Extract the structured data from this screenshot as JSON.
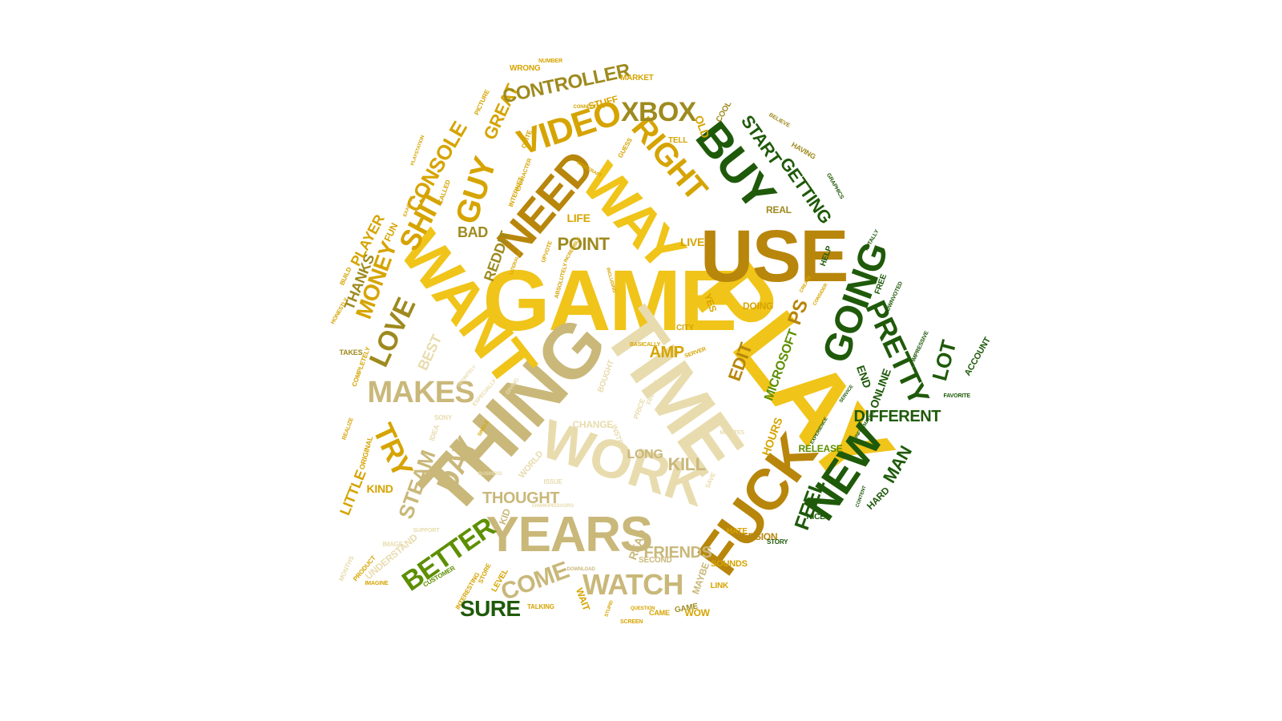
{
  "palette": {
    "gold": "#f0c419",
    "amber": "#d6a400",
    "brown": "#b8860b",
    "olive": "#9e8a1e",
    "khaki": "#c9b87a",
    "pale": "#e8dcae",
    "green": "#5d8f00",
    "darkgreen": "#1f5a0a",
    "forest": "#0f4a0f"
  },
  "words": [
    {
      "text": "GAME",
      "color": "gold"
    },
    {
      "text": "PLAY",
      "color": "gold"
    },
    {
      "text": "TIME",
      "color": "pale"
    },
    {
      "text": "THING",
      "color": "khaki"
    },
    {
      "text": "USE",
      "color": "brown"
    },
    {
      "text": "WANT",
      "color": "gold"
    },
    {
      "text": "WORK",
      "color": "pale"
    },
    {
      "text": "YEARS",
      "color": "khaki"
    },
    {
      "text": "FUCK",
      "color": "brown"
    },
    {
      "text": "WAY",
      "color": "gold"
    },
    {
      "text": "NEED",
      "color": "brown"
    },
    {
      "text": "BUY",
      "color": "darkgreen"
    },
    {
      "text": "GOING",
      "color": "darkgreen"
    },
    {
      "text": "NEW",
      "color": "darkgreen"
    },
    {
      "text": "PRETTY",
      "color": "darkgreen"
    },
    {
      "text": "RIGHT",
      "color": "amber"
    },
    {
      "text": "VIDEO",
      "color": "amber"
    },
    {
      "text": "XBOX",
      "color": "olive"
    },
    {
      "text": "GUY",
      "color": "amber"
    },
    {
      "text": "SHIT",
      "color": "amber"
    },
    {
      "text": "CONSOLE",
      "color": "amber"
    },
    {
      "text": "GREAT",
      "color": "amber"
    },
    {
      "text": "CONTROLLER",
      "color": "olive"
    },
    {
      "text": "LOVE",
      "color": "olive"
    },
    {
      "text": "MONEY",
      "color": "amber"
    },
    {
      "text": "THANKS",
      "color": "olive"
    },
    {
      "text": "PLAYER",
      "color": "amber"
    },
    {
      "text": "MAKES",
      "color": "khaki"
    },
    {
      "text": "TRY",
      "color": "amber"
    },
    {
      "text": "DAY",
      "color": "khaki"
    },
    {
      "text": "STEAM",
      "color": "khaki"
    },
    {
      "text": "BETTER",
      "color": "green"
    },
    {
      "text": "COME",
      "color": "khaki"
    },
    {
      "text": "WATCH",
      "color": "khaki"
    },
    {
      "text": "SURE",
      "color": "darkgreen"
    },
    {
      "text": "START",
      "color": "darkgreen"
    },
    {
      "text": "GETTING",
      "color": "darkgreen"
    },
    {
      "text": "LOT",
      "color": "darkgreen"
    },
    {
      "text": "DIFFERENT",
      "color": "darkgreen"
    },
    {
      "text": "MAN",
      "color": "darkgreen"
    },
    {
      "text": "FEEL",
      "color": "darkgreen"
    },
    {
      "text": "POINT",
      "color": "olive"
    },
    {
      "text": "REDDIT",
      "color": "olive"
    },
    {
      "text": "BAD",
      "color": "olive"
    },
    {
      "text": "EDIT",
      "color": "brown"
    },
    {
      "text": "PS",
      "color": "brown"
    },
    {
      "text": "AMP",
      "color": "amber"
    },
    {
      "text": "MICROSOFT",
      "color": "green"
    },
    {
      "text": "END",
      "color": "darkgreen"
    },
    {
      "text": "ONLINE",
      "color": "darkgreen"
    },
    {
      "text": "THOUGHT",
      "color": "khaki"
    },
    {
      "text": "FRIENDS",
      "color": "khaki"
    },
    {
      "text": "KILL",
      "color": "khaki"
    },
    {
      "text": "LONG",
      "color": "khaki"
    },
    {
      "text": "BEST",
      "color": "pale"
    },
    {
      "text": "LITTLE",
      "color": "amber"
    },
    {
      "text": "KIND",
      "color": "amber"
    },
    {
      "text": "UNDERSTAND",
      "color": "pale"
    },
    {
      "text": "HOURS",
      "color": "amber"
    },
    {
      "text": "REAL",
      "color": "olive"
    },
    {
      "text": "LIFE",
      "color": "amber"
    },
    {
      "text": "LIVE",
      "color": "amber"
    },
    {
      "text": "HELP",
      "color": "darkgreen"
    },
    {
      "text": "FREE",
      "color": "darkgreen"
    },
    {
      "text": "ACCOUNT",
      "color": "darkgreen"
    },
    {
      "text": "STUFF",
      "color": "amber"
    },
    {
      "text": "OLD",
      "color": "amber"
    },
    {
      "text": "TELL",
      "color": "amber"
    },
    {
      "text": "COOL",
      "color": "olive"
    },
    {
      "text": "MARKET",
      "color": "amber"
    },
    {
      "text": "WRONG",
      "color": "amber"
    },
    {
      "text": "NUMBER",
      "color": "amber"
    },
    {
      "text": "PICTURE",
      "color": "amber"
    },
    {
      "text": "FUN",
      "color": "amber"
    },
    {
      "text": "YES",
      "color": "amber"
    },
    {
      "text": "DOING",
      "color": "amber"
    },
    {
      "text": "CITY",
      "color": "amber"
    },
    {
      "text": "RELEASE",
      "color": "green"
    },
    {
      "text": "VERSION",
      "color": "brown"
    },
    {
      "text": "STORY",
      "color": "darkgreen"
    },
    {
      "text": "NICE",
      "color": "darkgreen"
    },
    {
      "text": "HARD",
      "color": "darkgreen"
    },
    {
      "text": "MAYBE",
      "color": "khaki"
    },
    {
      "text": "SOUNDS",
      "color": "amber"
    },
    {
      "text": "LINK",
      "color": "amber"
    },
    {
      "text": "HATE",
      "color": "amber"
    },
    {
      "text": "READ",
      "color": "khaki"
    },
    {
      "text": "SECOND",
      "color": "khaki"
    },
    {
      "text": "WAIT",
      "color": "amber"
    },
    {
      "text": "LEVEL",
      "color": "amber"
    },
    {
      "text": "STORE",
      "color": "amber"
    },
    {
      "text": "INTERESTING",
      "color": "amber"
    },
    {
      "text": "CUSTOMER",
      "color": "green"
    },
    {
      "text": "IMAGINE",
      "color": "amber"
    },
    {
      "text": "PRODUCT",
      "color": "amber"
    },
    {
      "text": "MONTHS",
      "color": "pale"
    },
    {
      "text": "TALKING",
      "color": "amber"
    },
    {
      "text": "GAME",
      "color": "olive"
    },
    {
      "text": "WOW",
      "color": "amber"
    },
    {
      "text": "ORIGINAL",
      "color": "amber"
    },
    {
      "text": "HONESTLY",
      "color": "amber"
    },
    {
      "text": "BUILD",
      "color": "amber"
    },
    {
      "text": "TAKES",
      "color": "olive"
    },
    {
      "text": "COMPLETELY",
      "color": "amber"
    },
    {
      "text": "REALIZE",
      "color": "amber"
    },
    {
      "text": "CHANGE",
      "color": "pale"
    },
    {
      "text": "INSTEAD",
      "color": "pale"
    },
    {
      "text": "PRICE",
      "color": "pale"
    },
    {
      "text": "FINALLY",
      "color": "pale"
    },
    {
      "text": "BOUGHT",
      "color": "pale"
    },
    {
      "text": "WORLD",
      "color": "pale"
    },
    {
      "text": "ISSUE",
      "color": "pale"
    },
    {
      "text": "IDEA",
      "color": "pale"
    },
    {
      "text": "SONY",
      "color": "pale"
    },
    {
      "text": "KID",
      "color": "khaki"
    },
    {
      "text": "SAVE",
      "color": "pale"
    },
    {
      "text": "MINUTES",
      "color": "pale"
    },
    {
      "text": "SERVER",
      "color": "amber"
    },
    {
      "text": "BASICALLY",
      "color": "amber"
    },
    {
      "text": "CONSIDER",
      "color": "amber"
    },
    {
      "text": "CREATE",
      "color": "amber"
    },
    {
      "text": "GRAPHICS",
      "color": "darkgreen"
    },
    {
      "text": "TOTALLY",
      "color": "darkgreen"
    },
    {
      "text": "DOWNVOTED",
      "color": "darkgreen"
    },
    {
      "text": "IMPRESSIVE",
      "color": "darkgreen"
    },
    {
      "text": "FAVORITE",
      "color": "darkgreen"
    },
    {
      "text": "INFORMATION",
      "color": "darkgreen"
    },
    {
      "text": "CONTENT",
      "color": "darkgreen"
    },
    {
      "text": "EXPERIENCE",
      "color": "darkgreen"
    },
    {
      "text": "SERVICE",
      "color": "darkgreen"
    },
    {
      "text": "BELIEVE",
      "color": "olive"
    },
    {
      "text": "HAVING",
      "color": "olive"
    },
    {
      "text": "QUITE",
      "color": "amber"
    },
    {
      "text": "GUESS",
      "color": "amber"
    },
    {
      "text": "MINECRAFT",
      "color": "amber"
    },
    {
      "text": "CHARACTER",
      "color": "amber"
    },
    {
      "text": "CONNECTION",
      "color": "amber"
    },
    {
      "text": "PLAYSTATION",
      "color": "amber"
    },
    {
      "text": "INTERNET",
      "color": "amber"
    },
    {
      "text": "CALLED",
      "color": "amber"
    },
    {
      "text": "EXACTLY",
      "color": "amber"
    },
    {
      "text": "SINGLE",
      "color": "amber"
    },
    {
      "text": "INCREDIBLE",
      "color": "amber"
    },
    {
      "text": "UPVOTE",
      "color": "amber"
    },
    {
      "text": "LITERALLY",
      "color": "amber"
    },
    {
      "text": "ABSOLUTELY",
      "color": "amber"
    },
    {
      "text": "INCLUDING",
      "color": "amber"
    },
    {
      "text": "DEFINITELY",
      "color": "pale"
    },
    {
      "text": "ESPECIALLY",
      "color": "pale"
    },
    {
      "text": "GIVING",
      "color": "pale"
    },
    {
      "text": "BUSINESS",
      "color": "pale"
    },
    {
      "text": "SUPPORT",
      "color": "pale"
    },
    {
      "text": "ENWIKIPEDIAORG",
      "color": "pale"
    },
    {
      "text": "IMAGE",
      "color": "pale"
    },
    {
      "text": "DOWNLOAD",
      "color": "khaki"
    },
    {
      "text": "QUESTION",
      "color": "amber"
    },
    {
      "text": "SCREEN",
      "color": "amber"
    },
    {
      "text": "STUPID",
      "color": "amber"
    },
    {
      "text": "CAME",
      "color": "amber"
    }
  ]
}
